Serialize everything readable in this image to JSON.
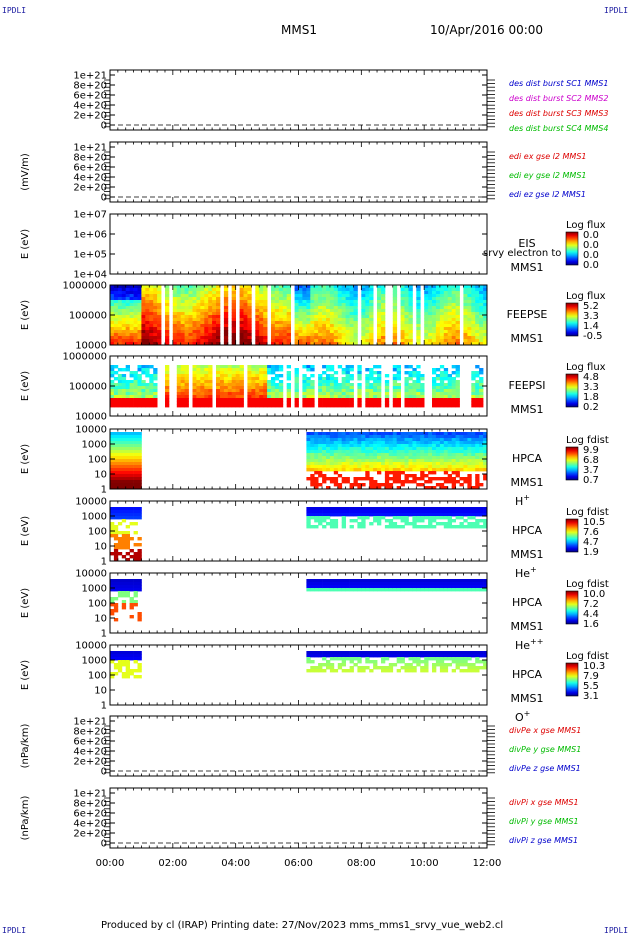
{
  "corners": {
    "tl": "IPDLI",
    "tr": "IPDLI",
    "bl": "IPDLI",
    "br": "IPDLI"
  },
  "header": {
    "spacecraft": "MMS1",
    "datetime": "10/Apr/2016 00:00"
  },
  "footer": {
    "text": "Produced by cl (IRAP)   Printing date: 27/Nov/2023   mms_mms1_srvy_vue_web2.cl"
  },
  "colors": {
    "blue": "#0000cc",
    "magenta": "#cc00cc",
    "red": "#dd0000",
    "green": "#00bb00",
    "spectrogram_bg": "#ffffff",
    "axis": "#000000"
  },
  "chart_data": {
    "type": "heatmap",
    "x_axis": {
      "ticks": [
        "00:00",
        "02:00",
        "04:00",
        "06:00",
        "08:00",
        "10:00",
        "12:00"
      ],
      "range_hours": [
        0,
        12
      ]
    },
    "panels": [
      {
        "id": "p1",
        "kind": "line",
        "ylabel": "",
        "yticks": [
          "1e+21",
          "8e+20",
          "6e+20",
          "4e+20",
          "2e+20",
          "0"
        ],
        "legend": [
          {
            "text": "des dist burst SC1 MMS1",
            "color": "blue"
          },
          {
            "text": "des dist burst SC2 MMS2",
            "color": "magenta"
          },
          {
            "text": "des dist burst SC3 MMS3",
            "color": "red"
          },
          {
            "text": "des dist burst SC4 MMS4",
            "color": "green"
          }
        ]
      },
      {
        "id": "p2",
        "kind": "line",
        "ylabel": "(mV/m)",
        "yticks": [
          "1e+21",
          "8e+20",
          "6e+20",
          "4e+20",
          "2e+20",
          "0"
        ],
        "legend": [
          {
            "text": "edi ex gse l2 MMS1",
            "color": "red"
          },
          {
            "text": "edi ey gse l2 MMS1",
            "color": "green"
          },
          {
            "text": "edi ez gse l2 MMS1",
            "color": "blue"
          }
        ]
      },
      {
        "id": "p3",
        "kind": "spec",
        "ylabel": "E (eV)",
        "yticks": [
          "1e+07",
          "1e+06",
          "1e+05",
          "1e+04"
        ],
        "instrument": [
          "EIS",
          "MMS1"
        ],
        "overlay": "srvy electron to",
        "cbar_title": "Log flux",
        "cbar_ticks": [
          "0.0",
          "0.0",
          "0.0",
          "0.0"
        ]
      },
      {
        "id": "p4",
        "kind": "spec",
        "ylabel": "E (eV)",
        "yticks": [
          "1000000",
          "100000",
          "10000"
        ],
        "instrument": [
          "FEEPSE",
          "MMS1"
        ],
        "cbar_title": "Log flux",
        "cbar_ticks": [
          "5.2",
          "3.3",
          "1.4",
          "-0.5"
        ]
      },
      {
        "id": "p5",
        "kind": "spec",
        "ylabel": "E (eV)",
        "yticks": [
          "1000000",
          "100000",
          "10000"
        ],
        "instrument": [
          "FEEPSI",
          "MMS1"
        ],
        "cbar_title": "Log flux",
        "cbar_ticks": [
          "4.8",
          "3.3",
          "1.8",
          "0.2"
        ]
      },
      {
        "id": "p6",
        "kind": "spec",
        "ylabel": "E (eV)",
        "yticks": [
          "10000",
          "1000",
          "100",
          "10",
          "1"
        ],
        "instrument": [
          "HPCA",
          "MMS1",
          "H+"
        ],
        "cbar_title": "Log fdist",
        "cbar_ticks": [
          "9.9",
          "6.8",
          "3.7",
          "0.7"
        ]
      },
      {
        "id": "p7",
        "kind": "spec",
        "ylabel": "E (eV)",
        "yticks": [
          "10000",
          "1000",
          "100",
          "10",
          "1"
        ],
        "instrument": [
          "HPCA",
          "MMS1",
          "He+"
        ],
        "cbar_title": "Log fdist",
        "cbar_ticks": [
          "10.5",
          "7.6",
          "4.7",
          "1.9"
        ]
      },
      {
        "id": "p8",
        "kind": "spec",
        "ylabel": "E (eV)",
        "yticks": [
          "10000",
          "1000",
          "100",
          "10",
          "1"
        ],
        "instrument": [
          "HPCA",
          "MMS1",
          "He++"
        ],
        "cbar_title": "Log fdist",
        "cbar_ticks": [
          "10.0",
          "7.2",
          "4.4",
          "1.6"
        ]
      },
      {
        "id": "p9",
        "kind": "spec",
        "ylabel": "E (eV)",
        "yticks": [
          "10000",
          "1000",
          "100",
          "10",
          "1"
        ],
        "instrument": [
          "HPCA",
          "MMS1",
          "O+"
        ],
        "cbar_title": "Log fdist",
        "cbar_ticks": [
          "10.3",
          "7.9",
          "5.5",
          "3.1"
        ]
      },
      {
        "id": "p10",
        "kind": "line",
        "ylabel": "(nPa/km)",
        "yticks": [
          "1e+21",
          "8e+20",
          "6e+20",
          "4e+20",
          "2e+20",
          "0"
        ],
        "legend": [
          {
            "text": "divPe x gse MMS1",
            "color": "red"
          },
          {
            "text": "divPe y gse MMS1",
            "color": "green"
          },
          {
            "text": "divPe z gse MMS1",
            "color": "blue"
          }
        ]
      },
      {
        "id": "p11",
        "kind": "line",
        "ylabel": "(nPa/km)",
        "yticks": [
          "1e+21",
          "8e+20",
          "6e+20",
          "4e+20",
          "2e+20",
          "0"
        ],
        "legend": [
          {
            "text": "divPi x gse MMS1",
            "color": "red"
          },
          {
            "text": "divPi y gse MMS1",
            "color": "green"
          },
          {
            "text": "divPi z gse MMS1",
            "color": "blue"
          }
        ]
      }
    ],
    "coverage_hours": {
      "fpi_hpca": [
        [
          0.0,
          1.0
        ],
        [
          6.2,
          12.0
        ]
      ],
      "feeps": [
        [
          0.0,
          12.0
        ]
      ]
    }
  }
}
